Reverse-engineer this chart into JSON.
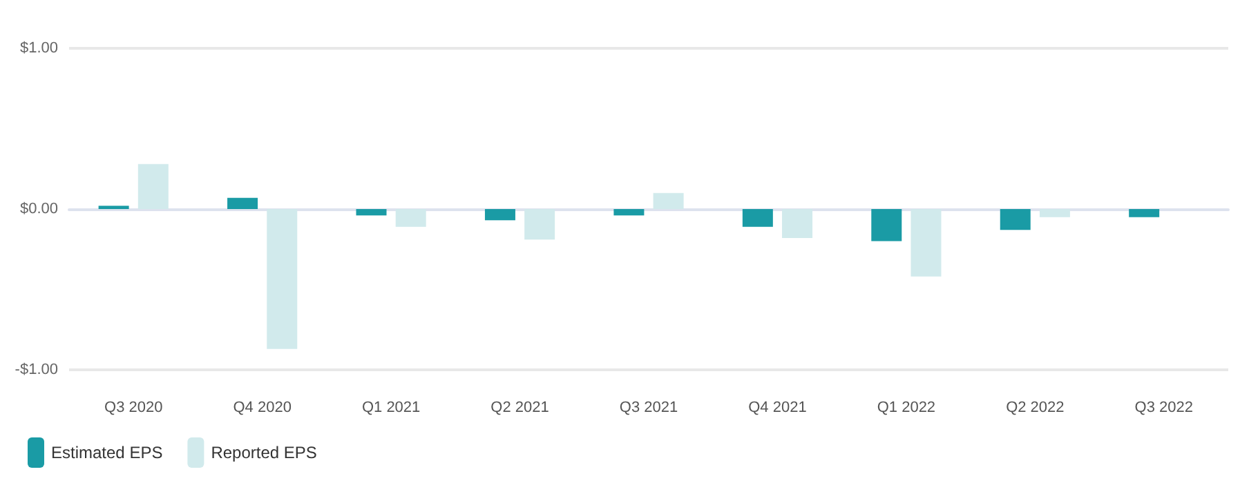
{
  "chart_data": {
    "type": "bar",
    "categories": [
      "Q3 2020",
      "Q4 2020",
      "Q1 2021",
      "Q2 2021",
      "Q3 2021",
      "Q4 2021",
      "Q1 2022",
      "Q2 2022",
      "Q3 2022"
    ],
    "series": [
      {
        "name": "Estimated EPS",
        "color": "#1a9ba5",
        "values": [
          0.02,
          0.07,
          -0.04,
          -0.07,
          -0.04,
          -0.11,
          -0.2,
          -0.13,
          -0.05
        ]
      },
      {
        "name": "Reported EPS",
        "color": "#d1eaec",
        "values": [
          0.28,
          -0.87,
          -0.11,
          -0.19,
          0.1,
          -0.18,
          -0.42,
          -0.05,
          null
        ]
      }
    ],
    "ylim": [
      -1,
      1
    ],
    "yticks": [
      {
        "value": -1,
        "label": "-$1.00"
      },
      {
        "value": 0,
        "label": "$0.00"
      },
      {
        "value": 1,
        "label": "$1.00"
      }
    ],
    "grid": "y",
    "legend": "bottom left"
  }
}
